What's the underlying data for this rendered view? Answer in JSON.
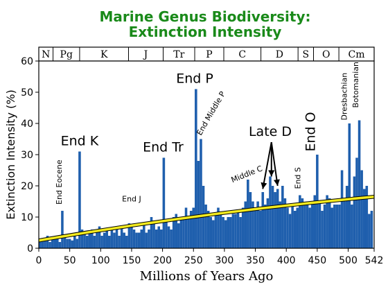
{
  "chart_data": {
    "type": "bar",
    "title_line1": "Marine Genus Biodiversity:",
    "title_line2": "Extinction Intensity",
    "xlabel": "Millions of Years Ago",
    "ylabel": "Extinction Intensity (%)",
    "xlim": [
      0,
      542
    ],
    "ylim": [
      0,
      60
    ],
    "x_reversed": false,
    "x_ticks": [
      "0",
      "50",
      "100",
      "150",
      "200",
      "250",
      "300",
      "350",
      "400",
      "450",
      "500",
      "542"
    ],
    "x_tick_values": [
      0,
      50,
      100,
      150,
      200,
      250,
      300,
      350,
      400,
      450,
      500,
      542
    ],
    "y_ticks": [
      "0",
      "10",
      "20",
      "30",
      "40",
      "50",
      "60"
    ],
    "y_tick_values": [
      0,
      10,
      20,
      30,
      40,
      50,
      60
    ],
    "bar_color": "#1f5fad",
    "trend_color": "#f2ea1e",
    "trend": {
      "x": [
        0,
        542
      ],
      "y": [
        2.5,
        16.5
      ]
    },
    "periods": [
      {
        "label": "N",
        "start": 0,
        "end": 23
      },
      {
        "label": "Pg",
        "start": 23,
        "end": 66
      },
      {
        "label": "K",
        "start": 66,
        "end": 145
      },
      {
        "label": "J",
        "start": 145,
        "end": 201
      },
      {
        "label": "Tr",
        "start": 201,
        "end": 252
      },
      {
        "label": "P",
        "start": 252,
        "end": 299
      },
      {
        "label": "C",
        "start": 299,
        "end": 359
      },
      {
        "label": "D",
        "start": 359,
        "end": 419
      },
      {
        "label": "S",
        "start": 419,
        "end": 444
      },
      {
        "label": "O",
        "start": 444,
        "end": 485
      },
      {
        "label": "Cm",
        "start": 485,
        "end": 542
      }
    ],
    "series": [
      {
        "x": [
          2,
          6,
          10,
          14,
          18,
          22,
          26,
          30,
          34,
          38,
          42,
          46,
          50,
          54,
          58,
          62,
          66,
          70,
          74,
          78,
          82,
          86,
          90,
          94,
          98,
          102,
          106,
          110,
          114,
          118,
          122,
          126,
          130,
          134,
          138,
          142,
          146,
          150,
          154,
          158,
          162,
          166,
          170,
          174,
          178,
          182,
          186,
          190,
          194,
          198,
          202,
          206,
          210,
          214,
          218,
          222,
          226,
          230,
          234,
          238,
          242,
          246,
          250,
          254,
          258,
          262,
          266,
          270,
          274,
          278,
          282,
          286,
          290,
          294,
          298,
          302,
          306,
          310,
          314,
          318,
          322,
          326,
          330,
          334,
          338,
          342,
          346,
          350,
          354,
          358,
          362,
          366,
          370,
          374,
          378,
          382,
          386,
          390,
          394,
          398,
          402,
          406,
          410,
          414,
          418,
          422,
          426,
          430,
          434,
          438,
          442,
          446,
          450,
          454,
          458,
          462,
          466,
          470,
          474,
          478,
          482,
          486,
          490,
          494,
          498,
          502,
          506,
          510,
          514,
          518,
          522,
          526,
          530,
          534,
          538
        ],
        "y": [
          2,
          3,
          2.5,
          4,
          2,
          3,
          3,
          4,
          2,
          12,
          4,
          3,
          3,
          2.5,
          4,
          3,
          31,
          6,
          5,
          4,
          5,
          6,
          4,
          5,
          7,
          4,
          5,
          6,
          4,
          6,
          5,
          6,
          4,
          7,
          5,
          4,
          8,
          7,
          6,
          5,
          5,
          6,
          8,
          5,
          6,
          10,
          8,
          6,
          7,
          6,
          29,
          9,
          7,
          6,
          10,
          11,
          8,
          9,
          10,
          13,
          10,
          12,
          13,
          51,
          28,
          35,
          20,
          14,
          12,
          10,
          9,
          11,
          13,
          11,
          10,
          9,
          10,
          10,
          11,
          11,
          12,
          10,
          13,
          15,
          22,
          18,
          15,
          13,
          15,
          12,
          18,
          14,
          16,
          23,
          20,
          18,
          19,
          15,
          20,
          16,
          13,
          11,
          14,
          12,
          13,
          17,
          16,
          14,
          15,
          13,
          14,
          17,
          30,
          15,
          12,
          14,
          17,
          16,
          13,
          14,
          14,
          14,
          25,
          15,
          20,
          40,
          14,
          23,
          29,
          41,
          25,
          19,
          20,
          11,
          12
        ]
      }
    ],
    "annotations": [
      {
        "text": "End K",
        "size": "big",
        "x": 66,
        "y": 33,
        "rotate": 0
      },
      {
        "text": "End Eocene",
        "size": "small",
        "x": 37,
        "y": 14,
        "rotate": -90
      },
      {
        "text": "End J",
        "size": "small",
        "x": 150,
        "y": 15,
        "rotate": 0
      },
      {
        "text": "End Tr",
        "size": "big",
        "x": 201,
        "y": 31,
        "rotate": 0
      },
      {
        "text": "End P",
        "size": "big",
        "x": 252,
        "y": 53,
        "rotate": 0
      },
      {
        "text": "End Middle P",
        "size": "small",
        "x": 262,
        "y": 36,
        "rotate": -60
      },
      {
        "text": "Middle C",
        "size": "small",
        "x": 313,
        "y": 21,
        "rotate": -22
      },
      {
        "text": "Late D",
        "size": "big",
        "x": 374,
        "y": 36,
        "rotate": 0
      },
      {
        "text": "End S",
        "size": "small",
        "x": 423,
        "y": 19,
        "rotate": -90
      },
      {
        "text": "End O",
        "size": "big",
        "x": 446,
        "y": 31,
        "rotate": -90
      },
      {
        "text": "Dresbachian",
        "size": "small",
        "x": 498,
        "y": 41,
        "rotate": -90
      },
      {
        "text": "Botomanian",
        "size": "small",
        "x": 516,
        "y": 45,
        "rotate": -90
      }
    ],
    "late_d_arrows": [
      {
        "to_x": 362,
        "to_y": 19
      },
      {
        "to_x": 376,
        "to_y": 23
      },
      {
        "to_x": 386,
        "to_y": 20
      }
    ]
  }
}
